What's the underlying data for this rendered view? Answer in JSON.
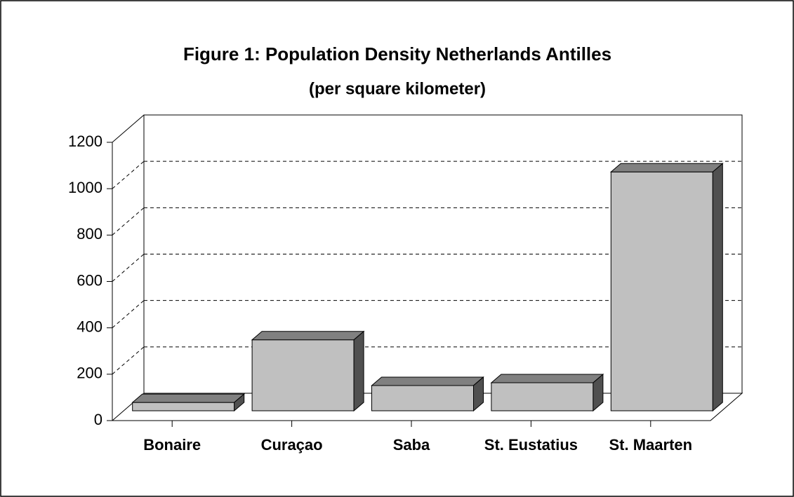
{
  "chart_data": {
    "type": "bar3d",
    "title": "Figure 1: Population Density Netherlands Antilles",
    "subtitle": "(per square kilometer)",
    "categories": [
      "Bonaire",
      "Curaçao",
      "Saba",
      "St. Eustatius",
      "St. Maarten"
    ],
    "values": [
      36,
      306,
      109,
      121,
      1030
    ],
    "color": "#c0c0c0",
    "ylim": [
      0,
      1200
    ],
    "yticks": [
      0,
      200,
      400,
      600,
      800,
      1000,
      1200
    ],
    "grid": true
  }
}
